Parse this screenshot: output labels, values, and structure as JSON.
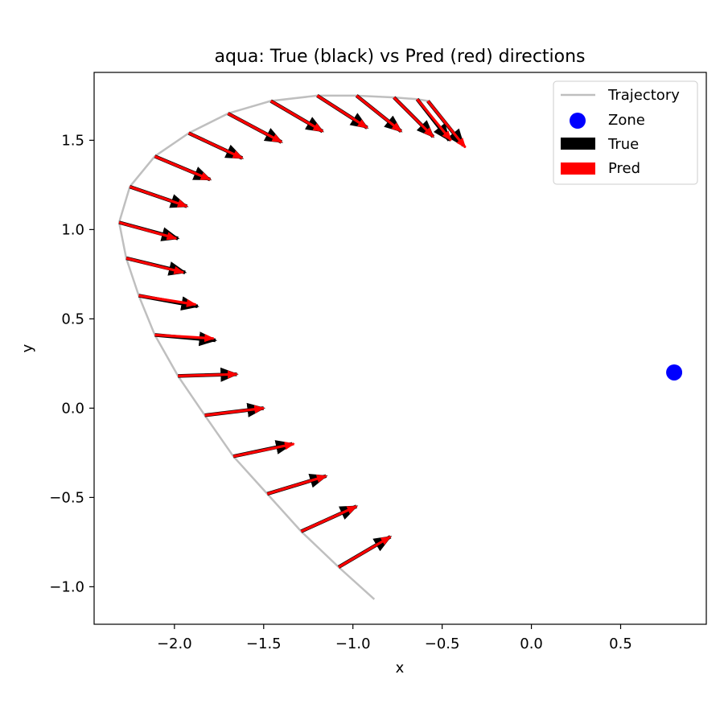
{
  "chart_data": {
    "type": "quiver",
    "title": "aqua: True (black) vs Pred (red) directions",
    "xlabel": "x",
    "ylabel": "y",
    "xlim": [
      -2.45,
      0.98
    ],
    "ylim": [
      -1.21,
      1.88
    ],
    "xticks": [
      -2.0,
      -1.5,
      -1.0,
      -0.5,
      0.0,
      0.5
    ],
    "xtick_labels": [
      "−2.0",
      "−1.5",
      "−1.0",
      "−0.5",
      "0.0",
      "0.5"
    ],
    "yticks": [
      -1.0,
      -0.5,
      0.0,
      0.5,
      1.0,
      1.5
    ],
    "ytick_labels": [
      "−1.0",
      "−0.5",
      "0.0",
      "0.5",
      "1.0",
      "1.5"
    ],
    "grid": false,
    "legend": {
      "placement": "upper right",
      "entries": [
        {
          "label": "Trajectory",
          "kind": "line",
          "color": "#bfbfbf"
        },
        {
          "label": "Zone",
          "kind": "marker",
          "color": "#0000ff"
        },
        {
          "label": "True",
          "kind": "patch",
          "color": "#000000"
        },
        {
          "label": "Pred",
          "kind": "patch",
          "color": "#ff0000"
        }
      ]
    },
    "colors": {
      "trajectory": "#bfbfbf",
      "zone": "#0000ff",
      "true": "#000000",
      "pred": "#ff0000"
    },
    "zone": {
      "x": 0.8,
      "y": 0.2
    },
    "trajectory": [
      [
        -0.88,
        -1.07
      ],
      [
        -1.08,
        -0.89
      ],
      [
        -1.29,
        -0.69
      ],
      [
        -1.48,
        -0.48
      ],
      [
        -1.67,
        -0.27
      ],
      [
        -1.83,
        -0.04
      ],
      [
        -1.98,
        0.18
      ],
      [
        -2.11,
        0.41
      ],
      [
        -2.2,
        0.63
      ],
      [
        -2.27,
        0.84
      ],
      [
        -2.31,
        1.04
      ],
      [
        -2.25,
        1.24
      ],
      [
        -2.11,
        1.41
      ],
      [
        -1.92,
        1.54
      ],
      [
        -1.7,
        1.65
      ],
      [
        -1.46,
        1.72
      ],
      [
        -1.2,
        1.75
      ],
      [
        -0.98,
        1.75
      ],
      [
        -0.77,
        1.74
      ],
      [
        -0.64,
        1.73
      ],
      [
        -0.58,
        1.72
      ]
    ],
    "arrows": [
      {
        "x": -1.08,
        "y": -0.89,
        "true_dx": 0.29,
        "true_dy": 0.17,
        "pred_dx": 0.29,
        "pred_dy": 0.17
      },
      {
        "x": -1.29,
        "y": -0.69,
        "true_dx": 0.31,
        "true_dy": 0.14,
        "pred_dx": 0.31,
        "pred_dy": 0.14
      },
      {
        "x": -1.48,
        "y": -0.48,
        "true_dx": 0.33,
        "true_dy": 0.1,
        "pred_dx": 0.33,
        "pred_dy": 0.1
      },
      {
        "x": -1.67,
        "y": -0.27,
        "true_dx": 0.33,
        "true_dy": 0.07,
        "pred_dx": 0.34,
        "pred_dy": 0.07
      },
      {
        "x": -1.83,
        "y": -0.04,
        "true_dx": 0.33,
        "true_dy": 0.04,
        "pred_dx": 0.33,
        "pred_dy": 0.04
      },
      {
        "x": -1.98,
        "y": 0.18,
        "true_dx": 0.33,
        "true_dy": 0.01,
        "pred_dx": 0.33,
        "pred_dy": 0.01
      },
      {
        "x": -2.11,
        "y": 0.41,
        "true_dx": 0.34,
        "true_dy": -0.03,
        "pred_dx": 0.33,
        "pred_dy": -0.02
      },
      {
        "x": -2.2,
        "y": 0.63,
        "true_dx": 0.33,
        "true_dy": -0.06,
        "pred_dx": 0.32,
        "pred_dy": -0.05
      },
      {
        "x": -2.27,
        "y": 0.84,
        "true_dx": 0.33,
        "true_dy": -0.08,
        "pred_dx": 0.32,
        "pred_dy": -0.08
      },
      {
        "x": -2.31,
        "y": 1.04,
        "true_dx": 0.33,
        "true_dy": -0.09,
        "pred_dx": 0.32,
        "pred_dy": -0.09
      },
      {
        "x": -2.25,
        "y": 1.24,
        "true_dx": 0.32,
        "true_dy": -0.11,
        "pred_dx": 0.32,
        "pred_dy": -0.11
      },
      {
        "x": -2.11,
        "y": 1.41,
        "true_dx": 0.31,
        "true_dy": -0.13,
        "pred_dx": 0.31,
        "pred_dy": -0.13
      },
      {
        "x": -1.92,
        "y": 1.54,
        "true_dx": 0.3,
        "true_dy": -0.14,
        "pred_dx": 0.3,
        "pred_dy": -0.14
      },
      {
        "x": -1.7,
        "y": 1.65,
        "true_dx": 0.3,
        "true_dy": -0.16,
        "pred_dx": 0.3,
        "pred_dy": -0.16
      },
      {
        "x": -1.46,
        "y": 1.72,
        "true_dx": 0.29,
        "true_dy": -0.17,
        "pred_dx": 0.29,
        "pred_dy": -0.17
      },
      {
        "x": -1.2,
        "y": 1.75,
        "true_dx": 0.28,
        "true_dy": -0.18,
        "pred_dx": 0.28,
        "pred_dy": -0.18
      },
      {
        "x": -0.98,
        "y": 1.75,
        "true_dx": 0.25,
        "true_dy": -0.2,
        "pred_dx": 0.25,
        "pred_dy": -0.2
      },
      {
        "x": -0.77,
        "y": 1.74,
        "true_dx": 0.22,
        "true_dy": -0.22,
        "pred_dx": 0.22,
        "pred_dy": -0.22
      },
      {
        "x": -0.64,
        "y": 1.73,
        "true_dx": 0.18,
        "true_dy": -0.23,
        "pred_dx": 0.19,
        "pred_dy": -0.23
      },
      {
        "x": -0.58,
        "y": 1.72,
        "true_dx": 0.2,
        "true_dy": -0.25,
        "pred_dx": 0.21,
        "pred_dy": -0.26
      }
    ]
  }
}
